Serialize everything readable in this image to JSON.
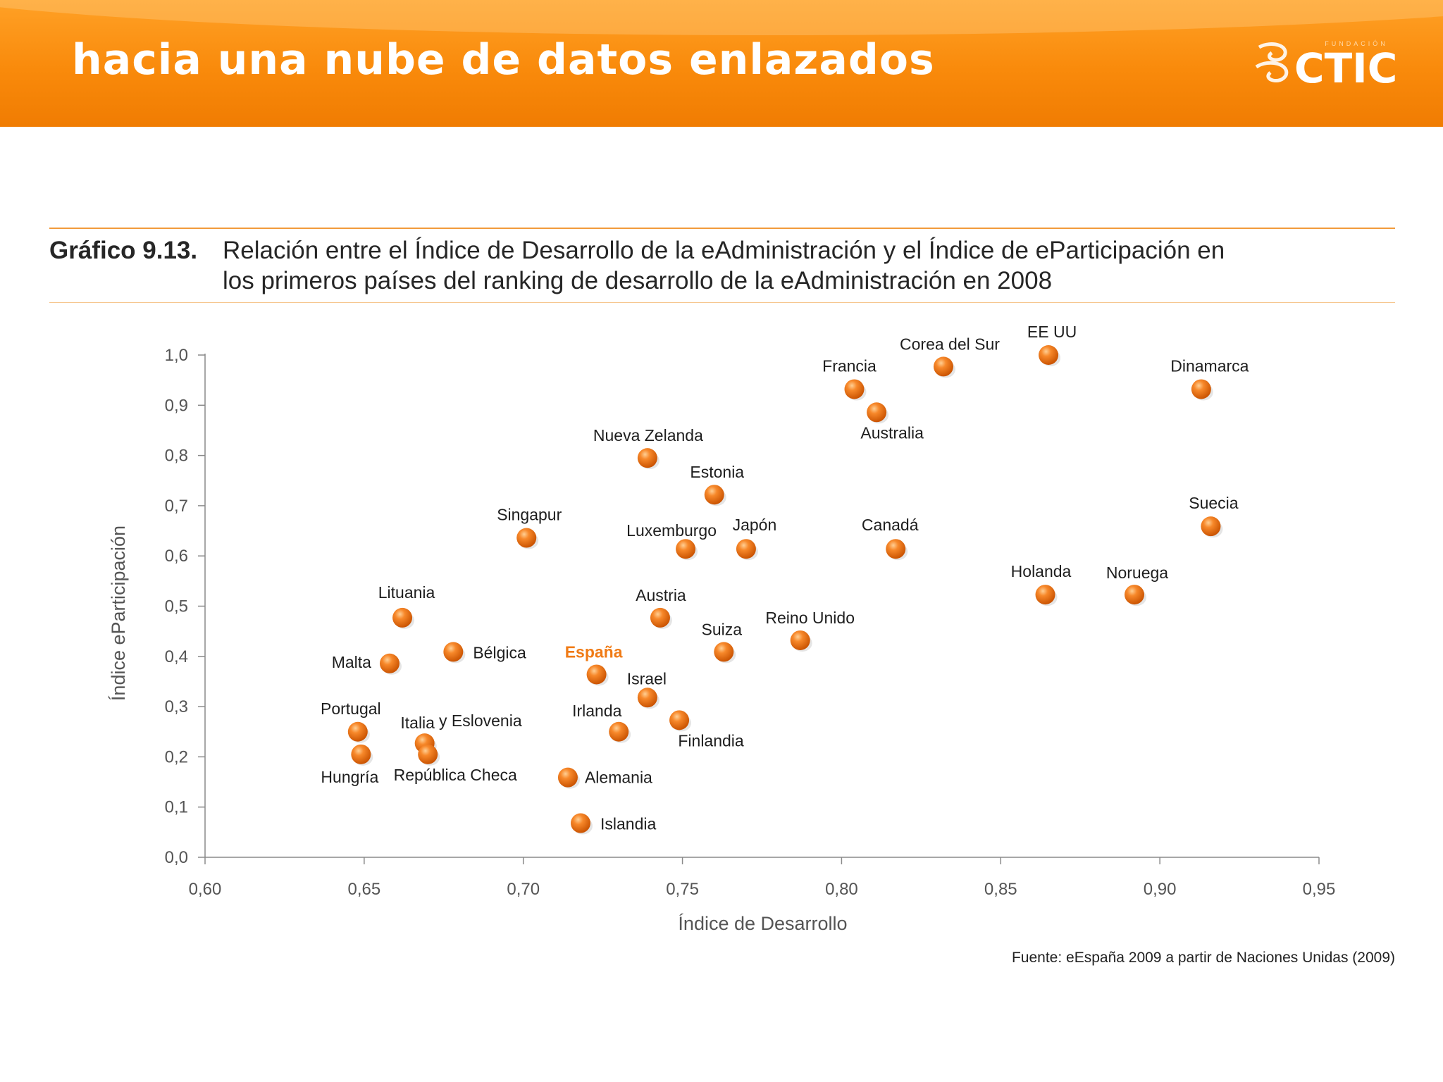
{
  "banner": {
    "title": "hacia una nube de datos enlazados",
    "logo_text": "CTIC",
    "logo_small_text": "FUNDACIÓN"
  },
  "figure": {
    "number": "Gráfico 9.13.",
    "title_line_1": "Relación entre el Índice de Desarrollo de la eAdministración y el Índice de eParticipación en",
    "title_line_2": "los primeros países del ranking de desarrollo de la eAdministración en 2008"
  },
  "source": "Fuente: eEspaña 2009 a partir de Naciones Unidas (2009)",
  "colors": {
    "banner": "#f98a0b",
    "dot": "#f07b16",
    "dot_light": "#ffb36b",
    "dot_dark": "#cc5400",
    "highlight_label": "#f07b16"
  },
  "chart_data": {
    "type": "scatter",
    "title": "Relación entre el Índice de Desarrollo de la eAdministración y el Índice de eParticipación",
    "xlabel": "Índice de Desarrollo",
    "ylabel": "Índice eParticipación",
    "xlim": [
      0.6,
      0.95
    ],
    "ylim": [
      0.0,
      1.0
    ],
    "x_ticks": [
      "0,60",
      "0,65",
      "0,70",
      "0,75",
      "0,80",
      "0,85",
      "0,90",
      "0,95"
    ],
    "y_ticks": [
      "0,0",
      "0,1",
      "0,2",
      "0,3",
      "0,4",
      "0,5",
      "0,6",
      "0,7",
      "0,8",
      "0,9",
      "1,0"
    ],
    "points": [
      {
        "label": "EE UU",
        "x": 0.865,
        "y": 1.0
      },
      {
        "label": "Corea del Sur",
        "x": 0.832,
        "y": 0.977
      },
      {
        "label": "Francia",
        "x": 0.804,
        "y": 0.932
      },
      {
        "label": "Dinamarca",
        "x": 0.913,
        "y": 0.932
      },
      {
        "label": "Australia",
        "x": 0.811,
        "y": 0.886
      },
      {
        "label": "Nueva Zelanda",
        "x": 0.739,
        "y": 0.795
      },
      {
        "label": "Estonia",
        "x": 0.76,
        "y": 0.722
      },
      {
        "label": "Suecia",
        "x": 0.916,
        "y": 0.659
      },
      {
        "label": "Singapur",
        "x": 0.701,
        "y": 0.636
      },
      {
        "label": "Luxemburgo",
        "x": 0.751,
        "y": 0.614
      },
      {
        "label": "Japón",
        "x": 0.77,
        "y": 0.614
      },
      {
        "label": "Canadá",
        "x": 0.817,
        "y": 0.614
      },
      {
        "label": "Holanda",
        "x": 0.864,
        "y": 0.523
      },
      {
        "label": "Noruega",
        "x": 0.892,
        "y": 0.523
      },
      {
        "label": "Lituania",
        "x": 0.662,
        "y": 0.477
      },
      {
        "label": "Austria",
        "x": 0.743,
        "y": 0.477
      },
      {
        "label": "Reino Unido",
        "x": 0.787,
        "y": 0.432
      },
      {
        "label": "Bélgica",
        "x": 0.678,
        "y": 0.409
      },
      {
        "label": "Suiza",
        "x": 0.763,
        "y": 0.409
      },
      {
        "label": "Malta",
        "x": 0.658,
        "y": 0.386
      },
      {
        "label": "España",
        "x": 0.723,
        "y": 0.364,
        "highlight": true
      },
      {
        "label": "Israel",
        "x": 0.739,
        "y": 0.318
      },
      {
        "label": "Finlandia",
        "x": 0.749,
        "y": 0.273
      },
      {
        "label": "Portugal",
        "x": 0.648,
        "y": 0.25
      },
      {
        "label": "Irlanda",
        "x": 0.73,
        "y": 0.25
      },
      {
        "label": "Italia",
        "x": 0.669,
        "y": 0.227
      },
      {
        "label": "Hungría",
        "x": 0.649,
        "y": 0.205
      },
      {
        "label": "República Checa",
        "x": 0.67,
        "y": 0.205
      },
      {
        "label": "Alemania",
        "x": 0.714,
        "y": 0.159
      },
      {
        "label": "Islandia",
        "x": 0.718,
        "y": 0.068
      }
    ],
    "annotation": "y Eslovenia"
  }
}
